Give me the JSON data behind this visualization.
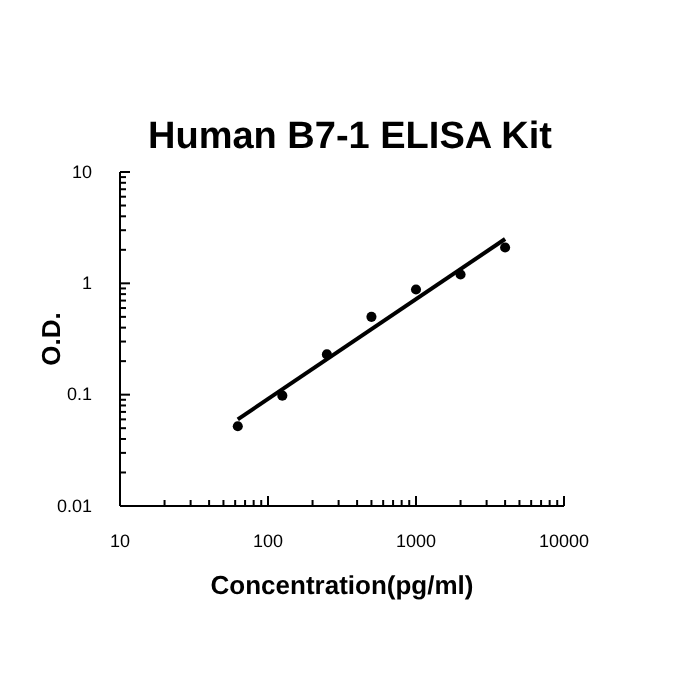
{
  "chart_data": {
    "type": "scatter",
    "title": "Human B7-1 ELISA Kit",
    "xlabel": "Concentration(pg/ml)",
    "ylabel": "O.D.",
    "log": "xy",
    "grid": false,
    "xlim": [
      10,
      10000
    ],
    "xticks": [
      10,
      100,
      1000,
      10000
    ],
    "ylim": [
      0.01,
      10
    ],
    "yticks": [
      0.01,
      0.1,
      1,
      10
    ],
    "series": [
      {
        "color": "#000000",
        "marker": "circle",
        "x": [
          62.5,
          125,
          250,
          500,
          1000,
          2000,
          4000
        ],
        "values": [
          0.052,
          0.098,
          0.23,
          0.5,
          0.88,
          1.2,
          2.1
        ]
      },
      {
        "type": "line",
        "color": "#000000",
        "marker": "none",
        "x": [
          62.5,
          4000
        ],
        "values": [
          0.06,
          2.5
        ]
      }
    ]
  }
}
